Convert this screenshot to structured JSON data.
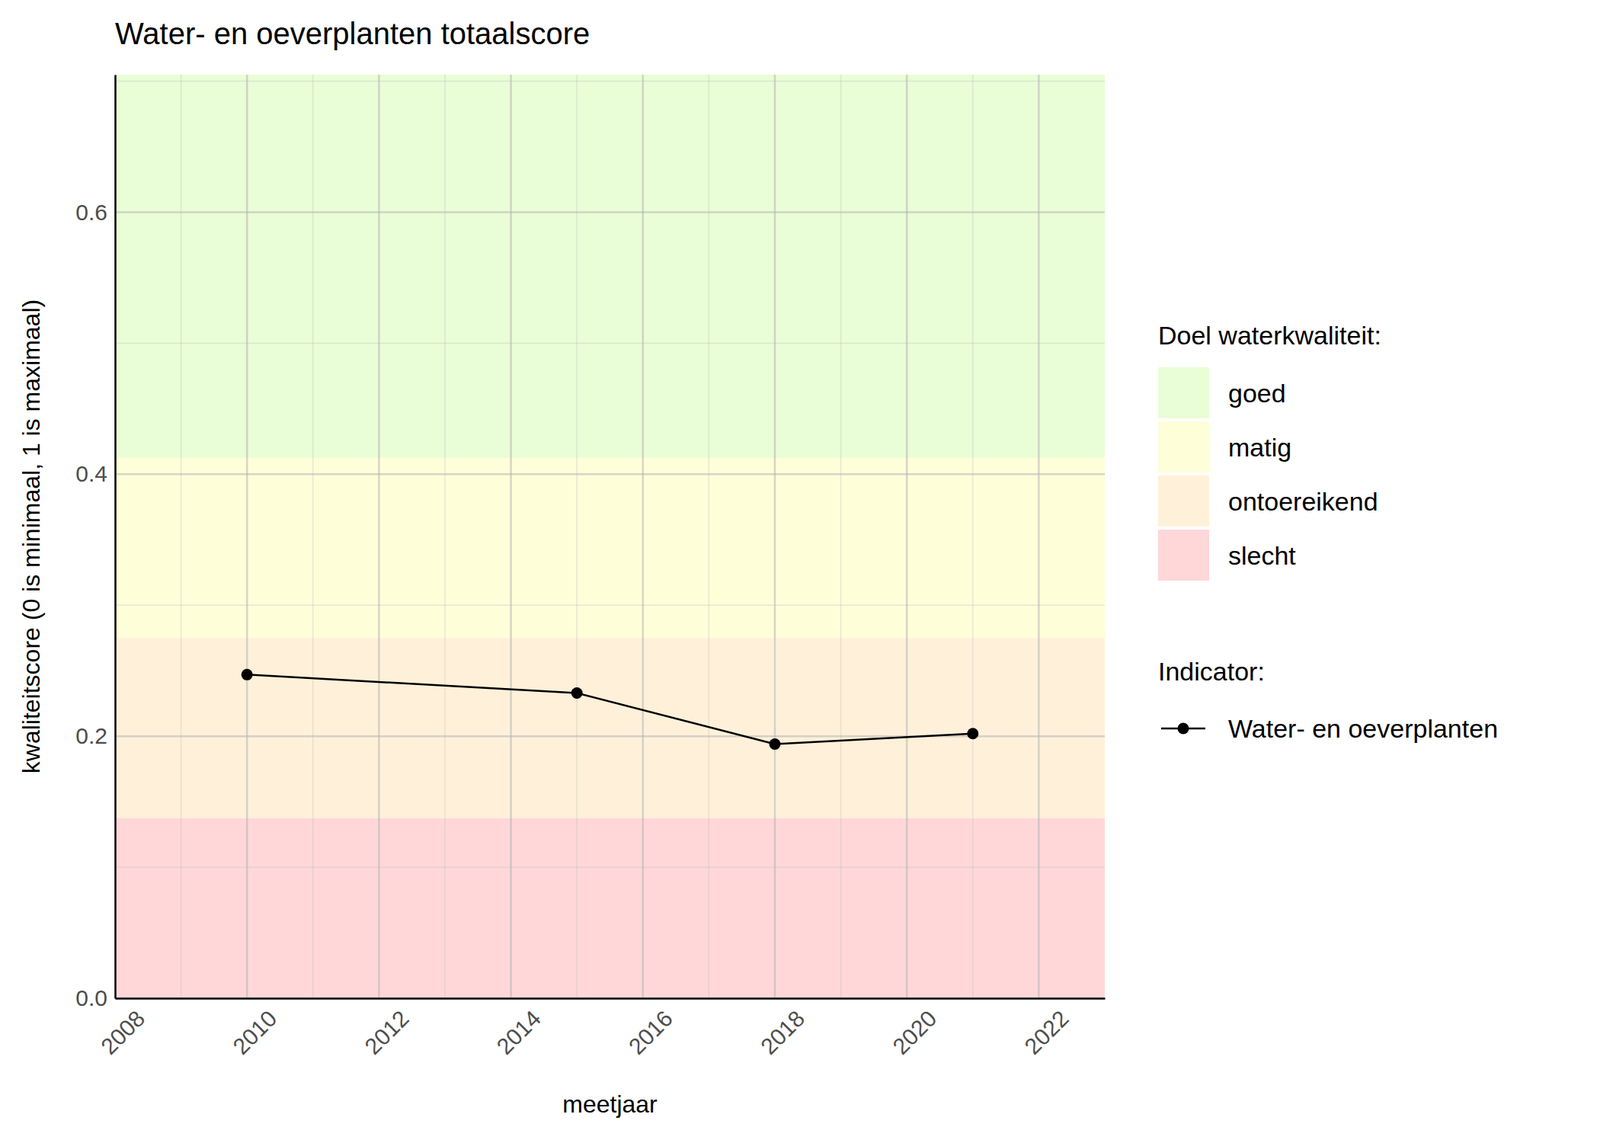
{
  "chart_data": {
    "type": "line",
    "title": "Water- en oeverplanten totaalscore",
    "x_label": "meetjaar",
    "y_label": "kwaliteitscore (0 is minimaal, 1 is maximaal)",
    "x": [
      2010,
      2015,
      2018,
      2021
    ],
    "series": [
      {
        "name": "Water- en oeverplanten",
        "color": "#000000",
        "marker": "circle",
        "line_style": "solid",
        "values": [
          0.247,
          0.233,
          0.194,
          0.202
        ]
      }
    ],
    "legend_title": "Indicator:",
    "bands": {
      "title": "Doel waterkwaliteit:",
      "items": [
        {
          "name": "goed",
          "color": "#e9fdd6",
          "from": 0.4125,
          "to": 0.705
        },
        {
          "name": "matig",
          "color": "#fefed9",
          "from": 0.275,
          "to": 0.4125
        },
        {
          "name": "ontoereikend",
          "color": "#fff1d9",
          "from": 0.1375,
          "to": 0.275
        },
        {
          "name": "slecht",
          "color": "#ffd7d9",
          "from": 0,
          "to": 0.1375
        }
      ]
    },
    "xlim": [
      2008,
      2023
    ],
    "xticks": [
      2008,
      2010,
      2012,
      2014,
      2016,
      2018,
      2020,
      2022
    ],
    "ylim": [
      0,
      0.705
    ],
    "yticks": [
      {
        "value": 0,
        "label": "0.0"
      },
      0.2,
      0.4,
      0.6
    ],
    "grid": true,
    "legend": "right"
  }
}
